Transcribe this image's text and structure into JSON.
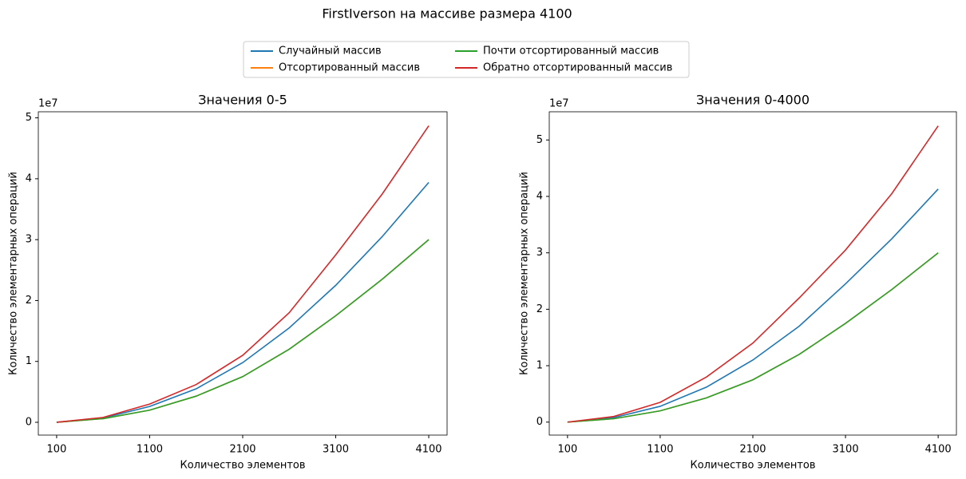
{
  "title": "FirstIverson на массиве размера 4100",
  "chart_data": [
    {
      "type": "line",
      "title": "Значения 0-5",
      "xlabel": "Количество элементов",
      "ylabel": "Количество элементарных операций",
      "offset_label": "1e7",
      "x": [
        100,
        600,
        1100,
        1600,
        2100,
        2600,
        3100,
        3600,
        4100
      ],
      "xlim": [
        -97,
        4297
      ],
      "xticks": [
        100,
        1100,
        2100,
        3100,
        4100
      ],
      "ylim": [
        -0.21,
        5.1
      ],
      "yticks": [
        0,
        1,
        2,
        3,
        4,
        5
      ],
      "grid": false,
      "series": [
        {
          "name": "Случайный массив",
          "color": "#1f77b4",
          "values": [
            0,
            0.07,
            0.26,
            0.55,
            0.98,
            1.55,
            2.25,
            3.05,
            3.94
          ]
        },
        {
          "name": "Отсортированный массив",
          "color": "#ff7f0e",
          "values": [
            0,
            0.06,
            0.2,
            0.43,
            0.75,
            1.2,
            1.75,
            2.35,
            3.0
          ]
        },
        {
          "name": "Почти отсортированный массив",
          "color": "#2ca02c",
          "values": [
            0,
            0.06,
            0.2,
            0.43,
            0.75,
            1.2,
            1.75,
            2.35,
            3.0
          ]
        },
        {
          "name": "Обратно отсортированный массив",
          "color": "#d62728",
          "values": [
            0,
            0.08,
            0.3,
            0.62,
            1.1,
            1.8,
            2.75,
            3.75,
            4.87
          ]
        }
      ]
    },
    {
      "type": "line",
      "title": "Значения 0-4000",
      "xlabel": "Количество элементов",
      "ylabel": "Количество элементарных операций",
      "offset_label": "1e7",
      "x": [
        100,
        600,
        1100,
        1600,
        2100,
        2600,
        3100,
        3600,
        4100
      ],
      "xlim": [
        -97,
        4297
      ],
      "xticks": [
        100,
        1100,
        2100,
        3100,
        4100
      ],
      "ylim": [
        -0.23,
        5.5
      ],
      "yticks": [
        0,
        1,
        2,
        3,
        4,
        5
      ],
      "grid": false,
      "series": [
        {
          "name": "Случайный массив",
          "color": "#1f77b4",
          "values": [
            0,
            0.08,
            0.28,
            0.62,
            1.1,
            1.7,
            2.45,
            3.25,
            4.13
          ]
        },
        {
          "name": "Отсортированный массив",
          "color": "#ff7f0e",
          "values": [
            0,
            0.06,
            0.2,
            0.43,
            0.75,
            1.2,
            1.75,
            2.35,
            3.0
          ]
        },
        {
          "name": "Почти отсортированный массив",
          "color": "#2ca02c",
          "values": [
            0,
            0.06,
            0.2,
            0.43,
            0.75,
            1.2,
            1.75,
            2.35,
            3.0
          ]
        },
        {
          "name": "Обратно отсортированный массив",
          "color": "#d62728",
          "values": [
            0,
            0.1,
            0.35,
            0.8,
            1.4,
            2.2,
            3.05,
            4.05,
            5.25
          ]
        }
      ]
    }
  ]
}
